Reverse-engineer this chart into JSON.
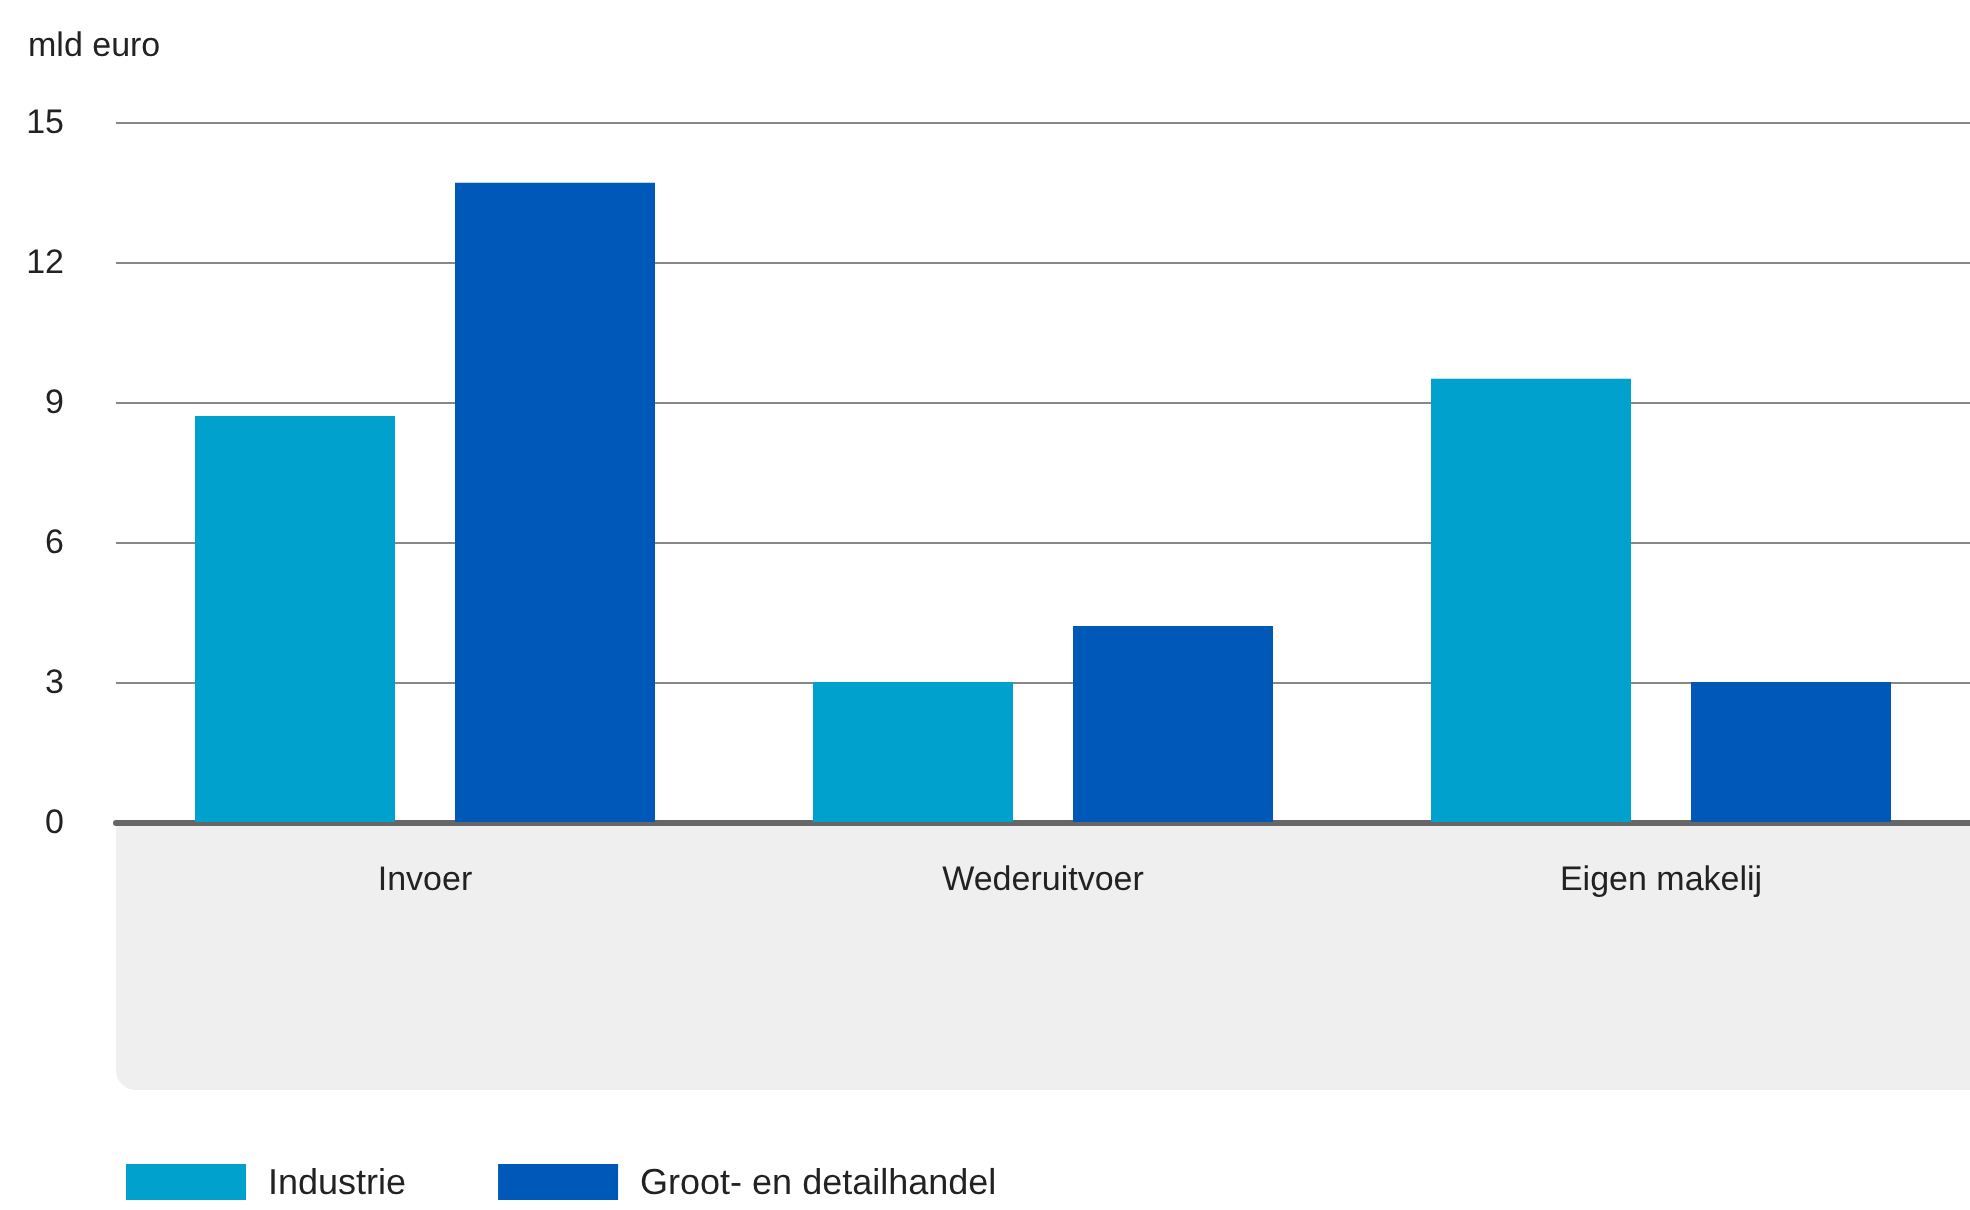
{
  "chart_data": {
    "type": "bar",
    "ylabel": "mld euro",
    "categories": [
      "Invoer",
      "Wederuitvoer",
      "Eigen makelij"
    ],
    "series": [
      {
        "name": "Industrie",
        "color": "#00a1cd",
        "values": [
          8.7,
          3.0,
          9.5
        ]
      },
      {
        "name": "Groot- en detailhandel",
        "color": "#0058b8",
        "values": [
          13.7,
          4.2,
          3.0
        ]
      }
    ],
    "ylim": [
      0,
      15
    ],
    "yticks": [
      0,
      3,
      6,
      9,
      12,
      15
    ],
    "grid": "y",
    "legend": "bottom left"
  }
}
